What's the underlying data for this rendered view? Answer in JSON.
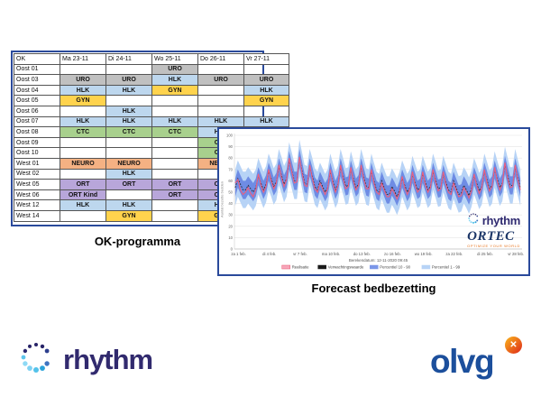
{
  "ok_table": {
    "caption": "OK-programma",
    "columns": [
      "OK",
      "Ma 23-11",
      "Di 24-11",
      "Wo 25-11",
      "Do 26-11",
      "Vr 27-11"
    ],
    "rows": [
      {
        "label": "Oost 01",
        "cells": [
          "",
          "",
          "URO",
          "",
          ""
        ]
      },
      {
        "label": "Oost 03",
        "cells": [
          "URO",
          "URO",
          "HLK",
          "URO",
          "URO"
        ]
      },
      {
        "label": "Oost 04",
        "cells": [
          "HLK",
          "HLK",
          "GYN",
          "",
          "HLK"
        ]
      },
      {
        "label": "Oost 05",
        "cells": [
          "GYN",
          "",
          "",
          "",
          "GYN"
        ]
      },
      {
        "label": "Oost 06",
        "cells": [
          "",
          "HLK",
          "",
          "",
          ""
        ]
      },
      {
        "label": "Oost 07",
        "cells": [
          "HLK",
          "HLK",
          "HLK",
          "HLK",
          "HLK"
        ]
      },
      {
        "label": "Oost 08",
        "cells": [
          "CTC",
          "CTC",
          "CTC",
          "HLK",
          ""
        ]
      },
      {
        "label": "Oost 09",
        "cells": [
          "",
          "",
          "",
          "CTC",
          ""
        ]
      },
      {
        "label": "Oost 10",
        "cells": [
          "",
          "",
          "",
          "CTC",
          ""
        ]
      },
      {
        "label": "West 01",
        "cells": [
          "NEURO",
          "NEURO",
          "",
          "NEURO",
          ""
        ]
      },
      {
        "label": "West 02",
        "cells": [
          "",
          "HLK",
          "",
          "",
          ""
        ]
      },
      {
        "label": "West 05",
        "cells": [
          "ORT",
          "ORT",
          "ORT",
          "ORT",
          ""
        ]
      },
      {
        "label": "West 06",
        "cells": [
          "ORT Kind",
          "",
          "ORT",
          "ORT",
          ""
        ]
      },
      {
        "label": "West 12",
        "cells": [
          "HLK",
          "HLK",
          "",
          "HLK",
          ""
        ]
      },
      {
        "label": "West 14",
        "cells": [
          "",
          "GYN",
          "",
          "GYN",
          ""
        ]
      }
    ],
    "specialty_colors": {
      "URO": "#c0c0c0",
      "HLK": "#bdd7ee",
      "GYN": "#ffd34d",
      "CTC": "#a8d08d",
      "NEURO": "#f4b183",
      "ORT": "#b8a6da",
      "ORT Kind": "#b8a6da"
    }
  },
  "forecast": {
    "caption": "Forecast bedbezetting",
    "footnote": "Berekendatum: 12-11-2020 09:45",
    "legend": [
      {
        "label": "Realisatie",
        "swatch_fill": "#f7a6ba",
        "swatch_stroke": "#e8566e"
      },
      {
        "label": "Verwachtingswaarde",
        "swatch_fill": "#1a1a1a",
        "swatch_stroke": "#1a1a1a"
      },
      {
        "label": "Percentiel 10 - 90",
        "swatch_fill": "#7b96e8",
        "swatch_stroke": "#7b96e8"
      },
      {
        "label": "Percentiel 1 - 99",
        "swatch_fill": "#b7d3f6",
        "swatch_stroke": "#b7d3f6"
      }
    ],
    "chart_data": {
      "type": "line",
      "title": "Forecast bedbezetting",
      "xlabel": "",
      "ylabel": "Aantal bezette bedden",
      "ylim": [
        0,
        100
      ],
      "yticks": [
        0,
        10,
        20,
        30,
        40,
        50,
        60,
        70,
        80,
        90,
        100
      ],
      "grid": true,
      "legend_position": "bottom",
      "days": 28,
      "samples_per_day": 4,
      "xtick_days": [
        0,
        3,
        6,
        9,
        12,
        15,
        18,
        21,
        24,
        27
      ],
      "xtick_labels": [
        "za 1 feb.",
        "di 4 feb.",
        "vr 7 feb.",
        "ma 10 feb.",
        "do 13 feb.",
        "zo 16 feb.",
        "wo 19 feb.",
        "za 22 feb.",
        "di 25 feb.",
        "vr 28 feb."
      ],
      "series": [
        {
          "name": "Verwachtingswaarde",
          "style": "dashed-black",
          "daily": [
            [
              54,
              62,
              57,
              52
            ],
            [
              52,
              56,
              53,
              50
            ],
            [
              54,
              64,
              58,
              52
            ],
            [
              57,
              68,
              62,
              55
            ],
            [
              59,
              72,
              65,
              57
            ],
            [
              62,
              78,
              69,
              60
            ],
            [
              60,
              80,
              69,
              58
            ],
            [
              57,
              72,
              64,
              55
            ],
            [
              52,
              60,
              55,
              50
            ],
            [
              54,
              68,
              60,
              52
            ],
            [
              57,
              72,
              64,
              55
            ],
            [
              56,
              70,
              62,
              54
            ],
            [
              57,
              72,
              64,
              55
            ],
            [
              54,
              68,
              60,
              52
            ],
            [
              50,
              60,
              54,
              48
            ],
            [
              48,
              55,
              51,
              46
            ],
            [
              52,
              62,
              56,
              50
            ],
            [
              54,
              66,
              59,
              52
            ],
            [
              54,
              66,
              59,
              52
            ],
            [
              55,
              68,
              61,
              53
            ],
            [
              54,
              66,
              59,
              52
            ],
            [
              50,
              60,
              54,
              48
            ],
            [
              49,
              56,
              52,
              47
            ],
            [
              53,
              64,
              58,
              51
            ],
            [
              55,
              68,
              61,
              53
            ],
            [
              56,
              70,
              62,
              54
            ],
            [
              58,
              74,
              65,
              56
            ],
            [
              56,
              72,
              63,
              54
            ]
          ]
        },
        {
          "name": "Realisatie",
          "style": "solid-pink",
          "daily": [
            [
              58,
              61,
              52,
              48
            ],
            [
              50,
              54,
              49,
              46
            ],
            [
              52,
              66,
              56,
              50
            ],
            [
              55,
              70,
              60,
              53
            ],
            [
              58,
              74,
              63,
              55
            ],
            [
              61,
              80,
              68,
              58
            ],
            [
              59,
              81,
              67,
              56
            ],
            [
              55,
              74,
              62,
              53
            ],
            [
              50,
              58,
              53,
              48
            ],
            [
              53,
              70,
              58,
              50
            ],
            [
              56,
              74,
              62,
              53
            ],
            [
              55,
              72,
              60,
              52
            ],
            [
              56,
              74,
              62,
              53
            ],
            [
              53,
              70,
              58,
              50
            ],
            [
              48,
              58,
              52,
              46
            ],
            [
              46,
              53,
              49,
              44
            ],
            [
              50,
              64,
              54,
              48
            ],
            [
              53,
              68,
              57,
              50
            ],
            [
              53,
              68,
              57,
              50
            ],
            [
              54,
              70,
              59,
              51
            ],
            [
              53,
              68,
              57,
              50
            ],
            [
              48,
              58,
              52,
              46
            ],
            [
              47,
              54,
              50,
              45
            ],
            [
              51,
              66,
              56,
              49
            ],
            [
              54,
              70,
              59,
              51
            ],
            [
              55,
              72,
              60,
              52
            ],
            [
              57,
              76,
              63,
              54
            ],
            [
              55,
              74,
              61,
              52
            ]
          ]
        }
      ],
      "bands": [
        {
          "name": "Percentiel 1 - 99",
          "halfwidth": 16,
          "color": "#b7d3f6"
        },
        {
          "name": "Percentiel 10 - 90",
          "halfwidth": 8,
          "color": "#6e8ce4"
        }
      ],
      "line_colors": {
        "realisatie": "#ed5f7d",
        "verwachtingswaarde": "#1c1c1c"
      }
    }
  },
  "logos": {
    "rhythm": {
      "text": "rhythm",
      "text_color": "#312a6e",
      "dot_colors": [
        "#282468",
        "#282468",
        "#2d3f8e",
        null,
        "#3f74c1",
        "#2aa2da",
        "#54c2ea",
        "#7fd2f3",
        "#8edaf5",
        "#5ec6ec",
        "#2c2a72",
        "#282468"
      ]
    },
    "ortec": {
      "text": "ORTEC",
      "tagline": "OPTIMIZE YOUR WORLD",
      "color": "#1c3667",
      "tagline_color": "#e87722"
    },
    "olvg": {
      "text": "olvg",
      "badge_glyph": "✕",
      "color": "#1c4f9c"
    }
  }
}
